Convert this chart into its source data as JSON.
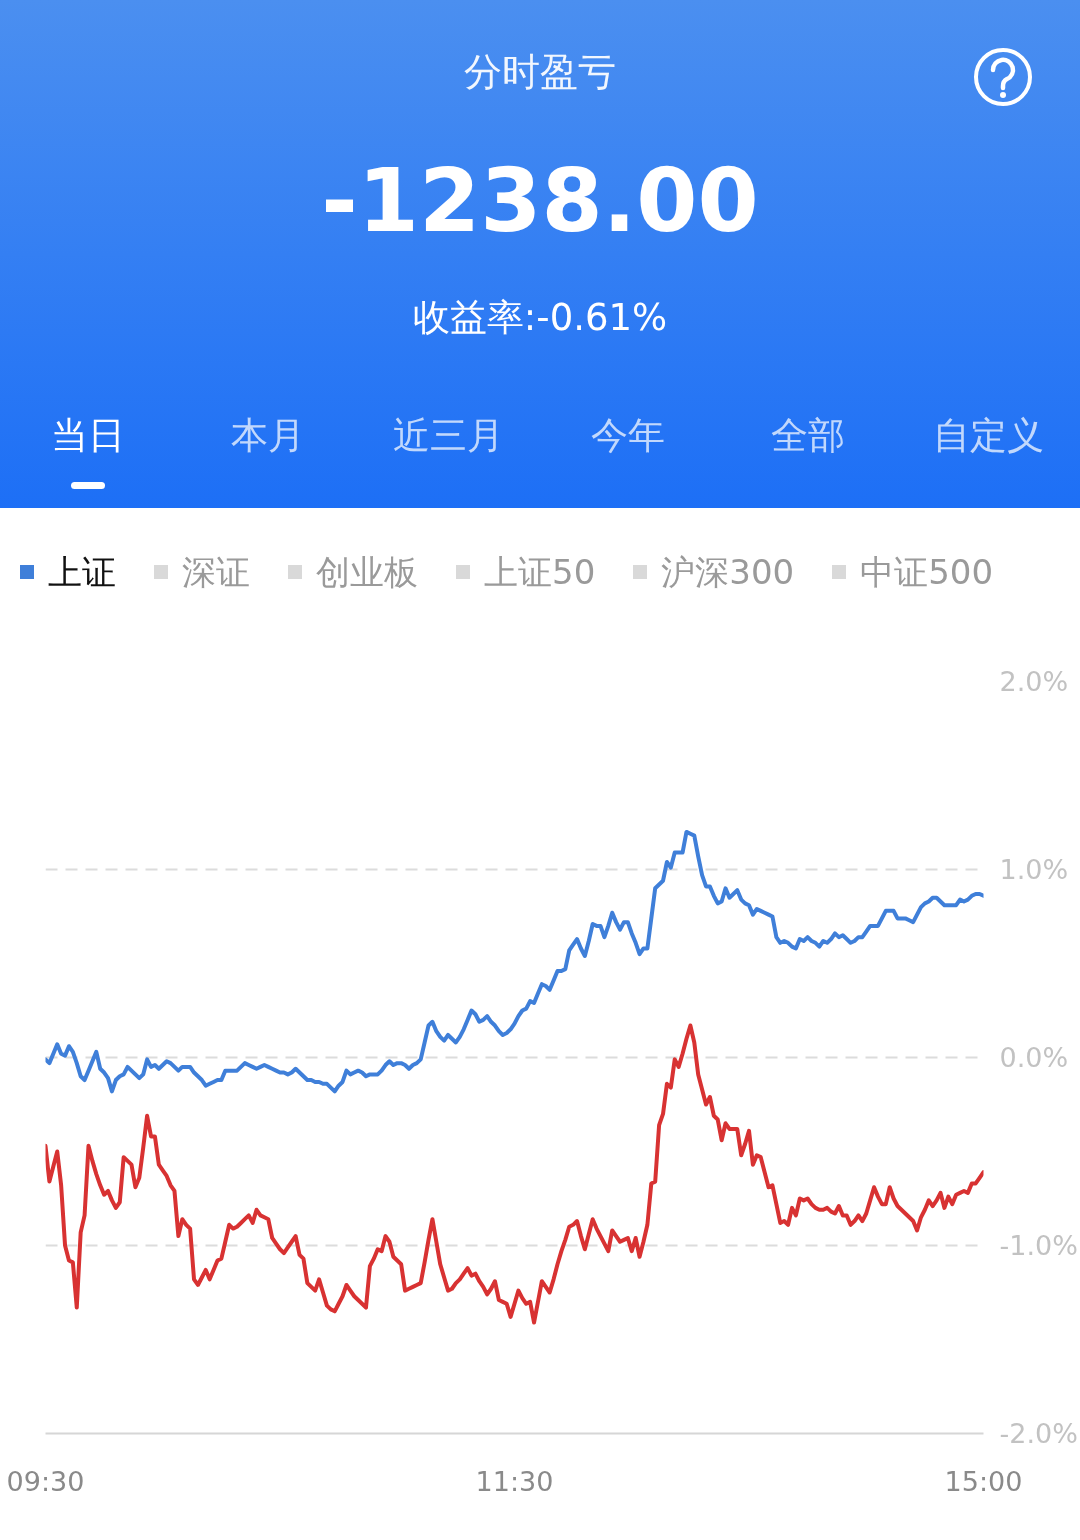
{
  "chart_data": {
    "type": "line",
    "title": "分时盈亏",
    "subtitle": "-1238.00",
    "annotations": [
      "收益率:-0.61%",
      "当日",
      "本月",
      "近三月",
      "今年",
      "全部",
      "自定义",
      "深证",
      "创业板",
      "上证50",
      "沪深300",
      "中证500"
    ],
    "categories": [
      "09:30",
      null,
      null,
      null,
      null,
      null,
      null,
      null,
      null,
      null,
      null,
      null,
      null,
      null,
      null,
      null,
      null,
      null,
      null,
      null,
      null,
      null,
      null,
      null,
      null,
      null,
      null,
      null,
      null,
      null,
      null,
      null,
      null,
      null,
      null,
      null,
      null,
      null,
      null,
      null,
      null,
      null,
      null,
      null,
      null,
      null,
      null,
      null,
      null,
      null,
      null,
      null,
      null,
      null,
      null,
      null,
      null,
      null,
      null,
      null,
      null,
      null,
      null,
      null,
      null,
      null,
      null,
      null,
      null,
      null,
      null,
      null,
      null,
      null,
      null,
      null,
      null,
      null,
      null,
      null,
      null,
      null,
      null,
      null,
      null,
      null,
      null,
      null,
      null,
      null,
      null,
      null,
      null,
      null,
      null,
      null,
      null,
      null,
      null,
      null,
      null,
      null,
      null,
      null,
      null,
      null,
      null,
      null,
      null,
      null,
      null,
      null,
      null,
      null,
      null,
      null,
      null,
      null,
      null,
      null,
      "11:30",
      null,
      null,
      null,
      null,
      null,
      null,
      null,
      null,
      null,
      null,
      null,
      null,
      null,
      null,
      null,
      null,
      null,
      null,
      null,
      null,
      null,
      null,
      null,
      null,
      null,
      null,
      null,
      null,
      null,
      null,
      null,
      null,
      null,
      null,
      null,
      null,
      null,
      null,
      null,
      null,
      null,
      null,
      null,
      null,
      null,
      null,
      null,
      null,
      null,
      null,
      null,
      null,
      null,
      null,
      null,
      null,
      null,
      null,
      null,
      null,
      null,
      null,
      null,
      null,
      null,
      null,
      null,
      null,
      null,
      null,
      null,
      null,
      null,
      null,
      null,
      null,
      null,
      null,
      null,
      null,
      null,
      null,
      null,
      null,
      null,
      null,
      null,
      null,
      null,
      null,
      null,
      null,
      null,
      null,
      null,
      null,
      null,
      null,
      null,
      null,
      null,
      null,
      null,
      null,
      null,
      null,
      null,
      null,
      null,
      null,
      null,
      null,
      null,
      null,
      null,
      null,
      null,
      null,
      null,
      "15:00"
    ],
    "ylim": [
      -2,
      2
    ],
    "yticks": [
      {
        "value": 2,
        "label": "2.0%"
      },
      {
        "value": 1,
        "label": "1.0%"
      },
      {
        "value": 0,
        "label": "0.0%"
      },
      {
        "value": -1,
        "label": "-1.0%"
      },
      {
        "value": -2,
        "label": "-2.0%"
      }
    ],
    "grid": "y",
    "legend": "top left",
    "series": [
      {
        "name": "上证",
        "color": "#3f7fd9",
        "values": [
          -0.01,
          -0.03,
          0.02,
          0.07,
          0.02,
          0.01,
          0.06,
          0.03,
          -0.03,
          -0.1,
          -0.12,
          -0.07,
          -0.02,
          0.03,
          -0.06,
          -0.08,
          -0.11,
          -0.18,
          -0.12,
          -0.1,
          -0.09,
          -0.05,
          -0.07,
          -0.09,
          -0.11,
          -0.09,
          -0.01,
          -0.05,
          -0.04,
          -0.06,
          -0.04,
          -0.02,
          -0.03,
          -0.05,
          -0.07,
          -0.05,
          -0.05,
          -0.05,
          -0.08,
          -0.1,
          -0.12,
          -0.15,
          -0.14,
          -0.13,
          -0.12,
          -0.12,
          -0.07,
          -0.07,
          -0.07,
          -0.07,
          -0.05,
          -0.03,
          -0.04,
          -0.05,
          -0.06,
          -0.05,
          -0.04,
          -0.05,
          -0.06,
          -0.07,
          -0.08,
          -0.08,
          -0.09,
          -0.08,
          -0.06,
          -0.08,
          -0.1,
          -0.12,
          -0.12,
          -0.13,
          -0.13,
          -0.14,
          -0.14,
          -0.16,
          -0.18,
          -0.15,
          -0.13,
          -0.07,
          -0.09,
          -0.08,
          -0.07,
          -0.08,
          -0.1,
          -0.09,
          -0.09,
          -0.09,
          -0.07,
          -0.04,
          -0.02,
          -0.04,
          -0.03,
          -0.03,
          -0.04,
          -0.06,
          -0.04,
          -0.03,
          -0.01,
          0.08,
          0.17,
          0.19,
          0.14,
          0.11,
          0.09,
          0.12,
          0.1,
          0.08,
          0.11,
          0.15,
          0.2,
          0.25,
          0.23,
          0.19,
          0.2,
          0.22,
          0.19,
          0.17,
          0.14,
          0.12,
          0.13,
          0.15,
          0.18,
          0.22,
          0.25,
          0.26,
          0.3,
          0.29,
          0.34,
          0.39,
          0.38,
          0.36,
          0.41,
          0.46,
          0.46,
          0.47,
          0.57,
          0.6,
          0.63,
          0.58,
          0.54,
          0.62,
          0.71,
          0.7,
          0.7,
          0.64,
          0.7,
          0.77,
          0.72,
          0.68,
          0.72,
          0.72,
          0.66,
          0.61,
          0.55,
          0.58,
          0.58,
          0.74,
          0.9,
          0.92,
          0.94,
          1.04,
          1.01,
          1.09,
          1.09,
          1.09,
          1.2,
          1.19,
          1.18,
          1.07,
          0.97,
          0.91,
          0.91,
          0.86,
          0.82,
          0.83,
          0.9,
          0.85,
          0.87,
          0.89,
          0.84,
          0.82,
          0.81,
          0.76,
          0.79,
          0.78,
          0.77,
          0.76,
          0.75,
          0.64,
          0.61,
          0.62,
          0.61,
          0.59,
          0.58,
          0.63,
          0.62,
          0.64,
          0.62,
          0.61,
          0.59,
          0.62,
          0.61,
          0.63,
          0.66,
          0.64,
          0.65,
          0.63,
          0.61,
          0.62,
          0.64,
          0.64,
          0.67,
          0.7,
          0.7,
          0.7,
          0.74,
          0.78,
          0.78,
          0.78,
          0.74,
          0.74,
          0.74,
          0.73,
          0.72,
          0.76,
          0.8,
          0.82,
          0.83,
          0.85,
          0.85,
          0.83,
          0.81,
          0.81,
          0.81,
          0.81,
          0.84,
          0.83,
          0.84,
          0.86,
          0.87,
          0.87,
          0.86
        ]
      },
      {
        "color": "#d83232",
        "values": [
          -0.47,
          -0.66,
          -0.58,
          -0.5,
          -0.68,
          -1.0,
          -1.08,
          -1.09,
          -1.33,
          -0.93,
          -0.84,
          -0.47,
          -0.55,
          -0.62,
          -0.68,
          -0.73,
          -0.71,
          -0.76,
          -0.8,
          -0.77,
          -0.53,
          -0.55,
          -0.57,
          -0.69,
          -0.64,
          -0.48,
          -0.31,
          -0.42,
          -0.42,
          -0.57,
          -0.6,
          -0.63,
          -0.68,
          -0.71,
          -0.95,
          -0.86,
          -0.89,
          -0.91,
          -1.18,
          -1.21,
          -1.17,
          -1.13,
          -1.18,
          -1.13,
          -1.08,
          -1.07,
          -0.98,
          -0.89,
          -0.91,
          -0.9,
          -0.88,
          -0.86,
          -0.84,
          -0.88,
          -0.81,
          -0.84,
          -0.85,
          -0.86,
          -0.96,
          -0.99,
          -1.02,
          -1.04,
          -1.01,
          -0.98,
          -0.95,
          -1.05,
          -1.07,
          -1.2,
          -1.22,
          -1.24,
          -1.18,
          -1.25,
          -1.32,
          -1.34,
          -1.35,
          -1.31,
          -1.27,
          -1.21,
          -1.24,
          -1.27,
          -1.29,
          -1.31,
          -1.33,
          -1.11,
          -1.07,
          -1.02,
          -1.03,
          -0.95,
          -0.98,
          -1.06,
          -1.08,
          -1.1,
          -1.24,
          -1.23,
          -1.22,
          -1.21,
          -1.2,
          -1.09,
          -0.97,
          -0.86,
          -0.98,
          -1.1,
          -1.17,
          -1.24,
          -1.23,
          -1.2,
          -1.18,
          -1.15,
          -1.12,
          -1.16,
          -1.15,
          -1.19,
          -1.22,
          -1.26,
          -1.23,
          -1.19,
          -1.29,
          -1.3,
          -1.31,
          -1.38,
          -1.31,
          -1.24,
          -1.28,
          -1.31,
          -1.3,
          -1.41,
          -1.3,
          -1.19,
          -1.22,
          -1.25,
          -1.18,
          -1.1,
          -1.03,
          -0.97,
          -0.9,
          -0.89,
          -0.87,
          -0.95,
          -1.02,
          -0.94,
          -0.86,
          -0.91,
          -0.95,
          -0.99,
          -1.03,
          -0.92,
          -0.95,
          -0.98,
          -0.97,
          -0.96,
          -1.03,
          -0.96,
          -1.06,
          -0.98,
          -0.89,
          -0.67,
          -0.66,
          -0.36,
          -0.3,
          -0.14,
          -0.16,
          -0.01,
          -0.05,
          0.02,
          0.1,
          0.17,
          0.08,
          -0.09,
          -0.17,
          -0.25,
          -0.21,
          -0.31,
          -0.33,
          -0.44,
          -0.35,
          -0.38,
          -0.38,
          -0.38,
          -0.52,
          -0.46,
          -0.39,
          -0.57,
          -0.52,
          -0.53,
          -0.61,
          -0.69,
          -0.68,
          -0.78,
          -0.88,
          -0.87,
          -0.89,
          -0.8,
          -0.84,
          -0.75,
          -0.76,
          -0.75,
          -0.78,
          -0.8,
          -0.81,
          -0.81,
          -0.8,
          -0.82,
          -0.83,
          -0.79,
          -0.84,
          -0.84,
          -0.89,
          -0.87,
          -0.84,
          -0.87,
          -0.83,
          -0.76,
          -0.69,
          -0.74,
          -0.78,
          -0.78,
          -0.69,
          -0.75,
          -0.79,
          -0.81,
          -0.83,
          -0.85,
          -0.87,
          -0.92,
          -0.85,
          -0.81,
          -0.76,
          -0.79,
          -0.76,
          -0.72,
          -0.8,
          -0.74,
          -0.78,
          -0.73,
          -0.72,
          -0.71,
          -0.72,
          -0.67,
          -0.67,
          -0.64,
          -0.61
        ]
      }
    ]
  }
}
